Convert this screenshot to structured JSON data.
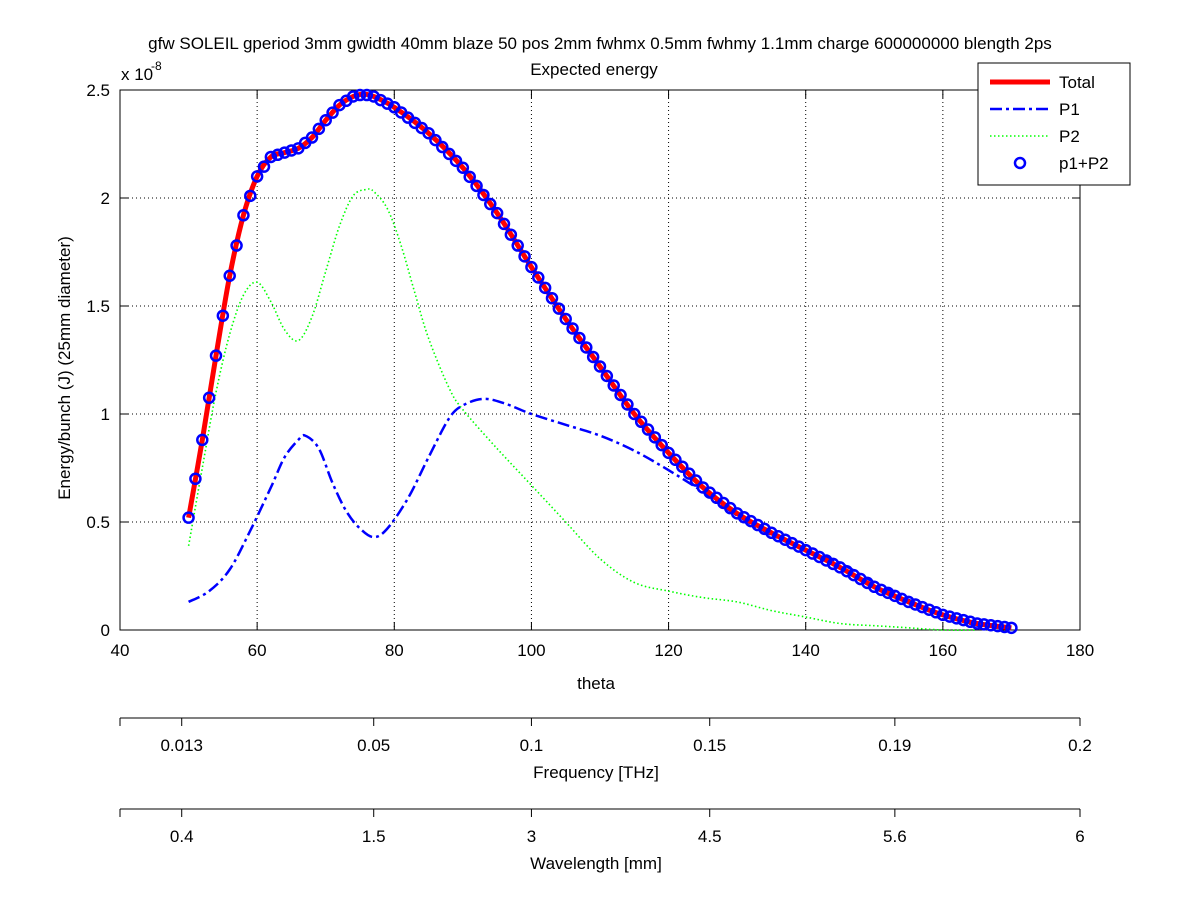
{
  "chart_data": {
    "type": "line",
    "title": "gfw SOLEIL gperiod 3mm gwidth 40mm blaze 50 pos 2mm fwhmx 0.5mm fwhmy 1.1mm charge 600000000 blength 2ps",
    "subtitle": "Expected energy",
    "xlabel": "theta",
    "ylabel": "Energy/bunch (J) (25mm diameter)",
    "y_exponent_label": "x 10",
    "y_exponent_power": "-8",
    "xlim": [
      40,
      180
    ],
    "ylim": [
      0,
      2.5
    ],
    "x_ticks": [
      "40",
      "60",
      "80",
      "100",
      "120",
      "140",
      "160",
      "180"
    ],
    "y_ticks": [
      "0",
      "0.5",
      "1",
      "1.5",
      "2",
      "2.5"
    ],
    "grid": true,
    "legend_position": "top-right",
    "series": [
      {
        "name": "Total",
        "style": "solid",
        "color": "#ff0000",
        "x": [
          50,
          52,
          54,
          56,
          58,
          60,
          62,
          64,
          66,
          68,
          70,
          72,
          74,
          75.5,
          77,
          80,
          85,
          90,
          95,
          100,
          105,
          110,
          115,
          120,
          125,
          130,
          135,
          140,
          145,
          150,
          155,
          160,
          165,
          170
        ],
        "y": [
          0.52,
          0.88,
          1.27,
          1.64,
          1.92,
          2.1,
          2.19,
          2.21,
          2.23,
          2.28,
          2.36,
          2.43,
          2.47,
          2.48,
          2.47,
          2.42,
          2.3,
          2.14,
          1.93,
          1.68,
          1.44,
          1.22,
          1.0,
          0.82,
          0.66,
          0.54,
          0.45,
          0.37,
          0.29,
          0.2,
          0.13,
          0.07,
          0.03,
          0.01
        ]
      },
      {
        "name": "P1",
        "style": "dashdot",
        "color": "#0000ff",
        "x": [
          50,
          53,
          56,
          59,
          62,
          64,
          66,
          67,
          69,
          71,
          73,
          75,
          77,
          79,
          82,
          85,
          88,
          90,
          93,
          96,
          100,
          105,
          110,
          115,
          120,
          125,
          130,
          135,
          140,
          145,
          150,
          155,
          160,
          165,
          168
        ],
        "y": [
          0.13,
          0.18,
          0.28,
          0.46,
          0.66,
          0.8,
          0.88,
          0.9,
          0.84,
          0.68,
          0.55,
          0.47,
          0.43,
          0.47,
          0.61,
          0.8,
          0.98,
          1.04,
          1.07,
          1.05,
          1.0,
          0.95,
          0.9,
          0.83,
          0.74,
          0.64,
          0.53,
          0.44,
          0.37,
          0.31,
          0.22,
          0.14,
          0.07,
          0.02,
          0.01
        ]
      },
      {
        "name": "P2",
        "style": "dotted",
        "color": "#00ff00",
        "x": [
          50,
          52,
          54,
          56,
          58,
          60,
          62,
          64,
          66,
          68,
          70,
          72,
          74,
          76,
          77,
          79,
          81,
          83,
          85,
          88,
          90,
          95,
          100,
          105,
          110,
          115,
          120,
          125,
          130,
          135,
          140,
          145,
          150,
          155,
          160,
          165
        ],
        "y": [
          0.39,
          0.75,
          1.1,
          1.37,
          1.55,
          1.61,
          1.52,
          1.39,
          1.34,
          1.45,
          1.66,
          1.87,
          2.01,
          2.04,
          2.03,
          1.95,
          1.78,
          1.56,
          1.35,
          1.12,
          1.02,
          0.84,
          0.67,
          0.5,
          0.33,
          0.22,
          0.18,
          0.15,
          0.13,
          0.09,
          0.06,
          0.03,
          0.02,
          0.01,
          0.0,
          0.0
        ]
      },
      {
        "name": "p1+P2",
        "style": "circles",
        "color": "#0000ff"
      }
    ],
    "secondary_axes": [
      {
        "label": "Frequency [THz]",
        "tick_labels": [
          "0.013",
          "0.05",
          "0.1",
          "0.15",
          "0.19",
          "0.2"
        ]
      },
      {
        "label": "Wavelength [mm]",
        "tick_labels": [
          "0.4",
          "1.5",
          "3",
          "4.5",
          "5.6",
          "6"
        ]
      }
    ]
  }
}
